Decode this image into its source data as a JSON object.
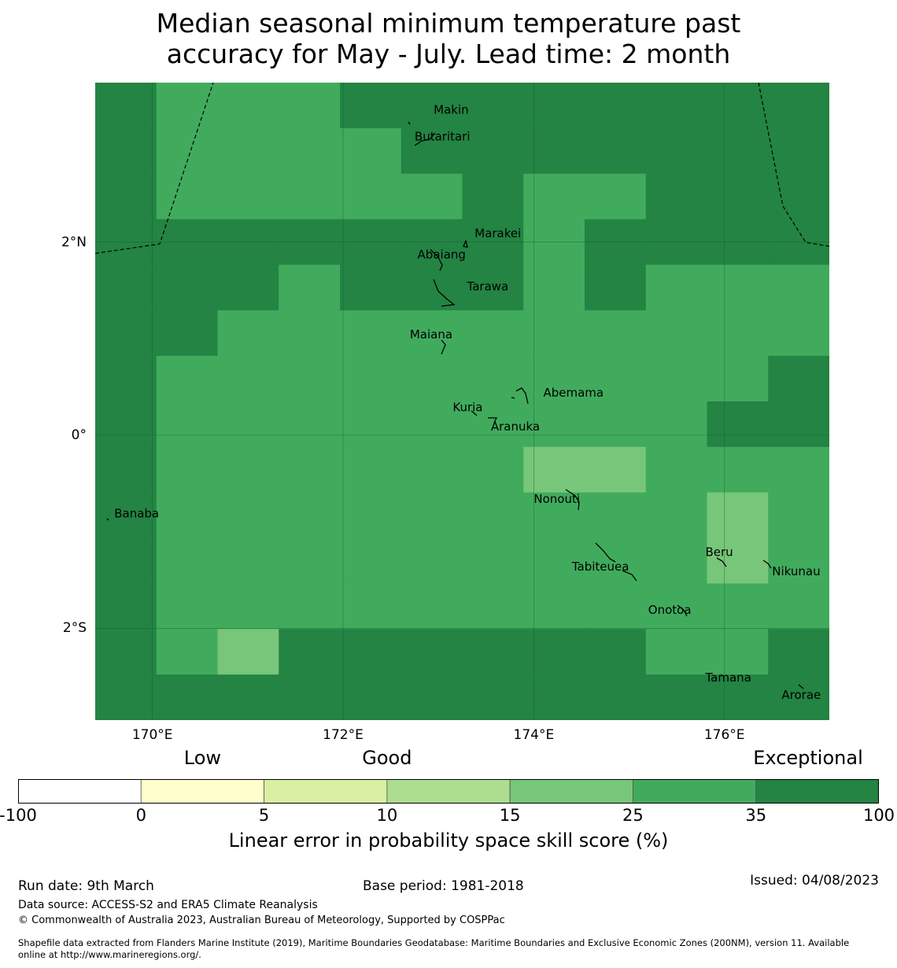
{
  "title_line1": "Median seasonal minimum temperature past",
  "title_line2": "accuracy for May - July. Lead time: 2 month",
  "colors": {
    "exceptional": "#238443",
    "very_good": "#41ab5d",
    "good": "#78c679",
    "fair": "#addd8e",
    "weak": "#d9f0a3",
    "low": "#ffffcc",
    "none": "#ffffff"
  },
  "map": {
    "lon_range": [
      169.4,
      177.1
    ],
    "lat_range": [
      -2.95,
      3.65
    ],
    "lon_ticks": [
      {
        "value": 170,
        "label": "170°E"
      },
      {
        "value": 172,
        "label": "172°E"
      },
      {
        "value": 174,
        "label": "174°E"
      },
      {
        "value": 176,
        "label": "176°E"
      }
    ],
    "lat_ticks": [
      {
        "value": 2,
        "label": "2°N"
      },
      {
        "value": 0,
        "label": "0°"
      },
      {
        "value": -2,
        "label": "2°S"
      }
    ],
    "grid_legend": "E = exceptional (35-100), V = very good (25-35), G = good (15-25)",
    "grid_rows": [
      "EVVVEEEEEEEE",
      "EVVVVEEEEEEE",
      "EVVVVVEVVEEE",
      "EEEEEEEVEEEE",
      "EEEVEEEVEVVV",
      "EEVVVVVVVVVV",
      "EVVVVVVVVVVE",
      "EVVVVVVVVVEE",
      "EVVVVVVGGVVV",
      "EVVVVVVVVVGV",
      "EVVVVVVVVVGV",
      "EVVVVVVVVVVV",
      "EVGEEEEEEVVE",
      "EEEEEEEEEEEE"
    ]
  },
  "places": [
    {
      "name": "Makin",
      "lon": 172.95,
      "lat": 3.33
    },
    {
      "name": "Butaritari",
      "lon": 172.75,
      "lat": 3.05
    },
    {
      "name": "Marakei",
      "lon": 173.38,
      "lat": 2.05
    },
    {
      "name": "Abaiang",
      "lon": 172.78,
      "lat": 1.83
    },
    {
      "name": "Tarawa",
      "lon": 173.3,
      "lat": 1.5
    },
    {
      "name": "Maiana",
      "lon": 172.7,
      "lat": 1.0
    },
    {
      "name": "Abemama",
      "lon": 174.1,
      "lat": 0.4
    },
    {
      "name": "Kuria",
      "lon": 173.15,
      "lat": 0.25
    },
    {
      "name": "Aranuka",
      "lon": 173.55,
      "lat": 0.05
    },
    {
      "name": "Nonouti",
      "lon": 174.0,
      "lat": -0.7
    },
    {
      "name": "Banaba",
      "lon": 169.6,
      "lat": -0.85
    },
    {
      "name": "Tabiteuea",
      "lon": 174.4,
      "lat": -1.4
    },
    {
      "name": "Beru",
      "lon": 175.8,
      "lat": -1.25
    },
    {
      "name": "Nikunau",
      "lon": 176.5,
      "lat": -1.45
    },
    {
      "name": "Onotoa",
      "lon": 175.2,
      "lat": -1.85
    },
    {
      "name": "Tamana",
      "lon": 175.8,
      "lat": -2.55
    },
    {
      "name": "Arorae",
      "lon": 176.6,
      "lat": -2.73
    }
  ],
  "legend": {
    "categories": [
      {
        "label": "Low",
        "at_value": 0
      },
      {
        "label": "Good",
        "at_value": 10
      },
      {
        "label": "Exceptional",
        "at_value": 100
      }
    ],
    "ticks": [
      "-100",
      "0",
      "5",
      "10",
      "15",
      "25",
      "35",
      "100"
    ],
    "segment_colors": [
      "#ffffff",
      "#ffffcc",
      "#d9f0a3",
      "#addd8e",
      "#78c679",
      "#41ab5d",
      "#238443"
    ],
    "label": "Linear error in probability space skill score (%)"
  },
  "footer": {
    "run_date": "Run date: 9th March",
    "base_period": "Base period: 1981-2018",
    "issued": "Issued: 04/08/2023",
    "data_source": "Data source: ACCESS-S2 and ERA5 Climate Reanalysis",
    "copyright": "© Commonwealth of Australia 2023, Australian Bureau of Meteorology, Supported by COSPPac",
    "shapefile_line1": "Shapefile data extracted from Flanders Marine Institute (2019), Maritime Boundaries Geodatabase: Maritime Boundaries and Exclusive Economic Zones (200NM), version 11. Available",
    "shapefile_line2": "online at http://www.marineregions.org/."
  }
}
